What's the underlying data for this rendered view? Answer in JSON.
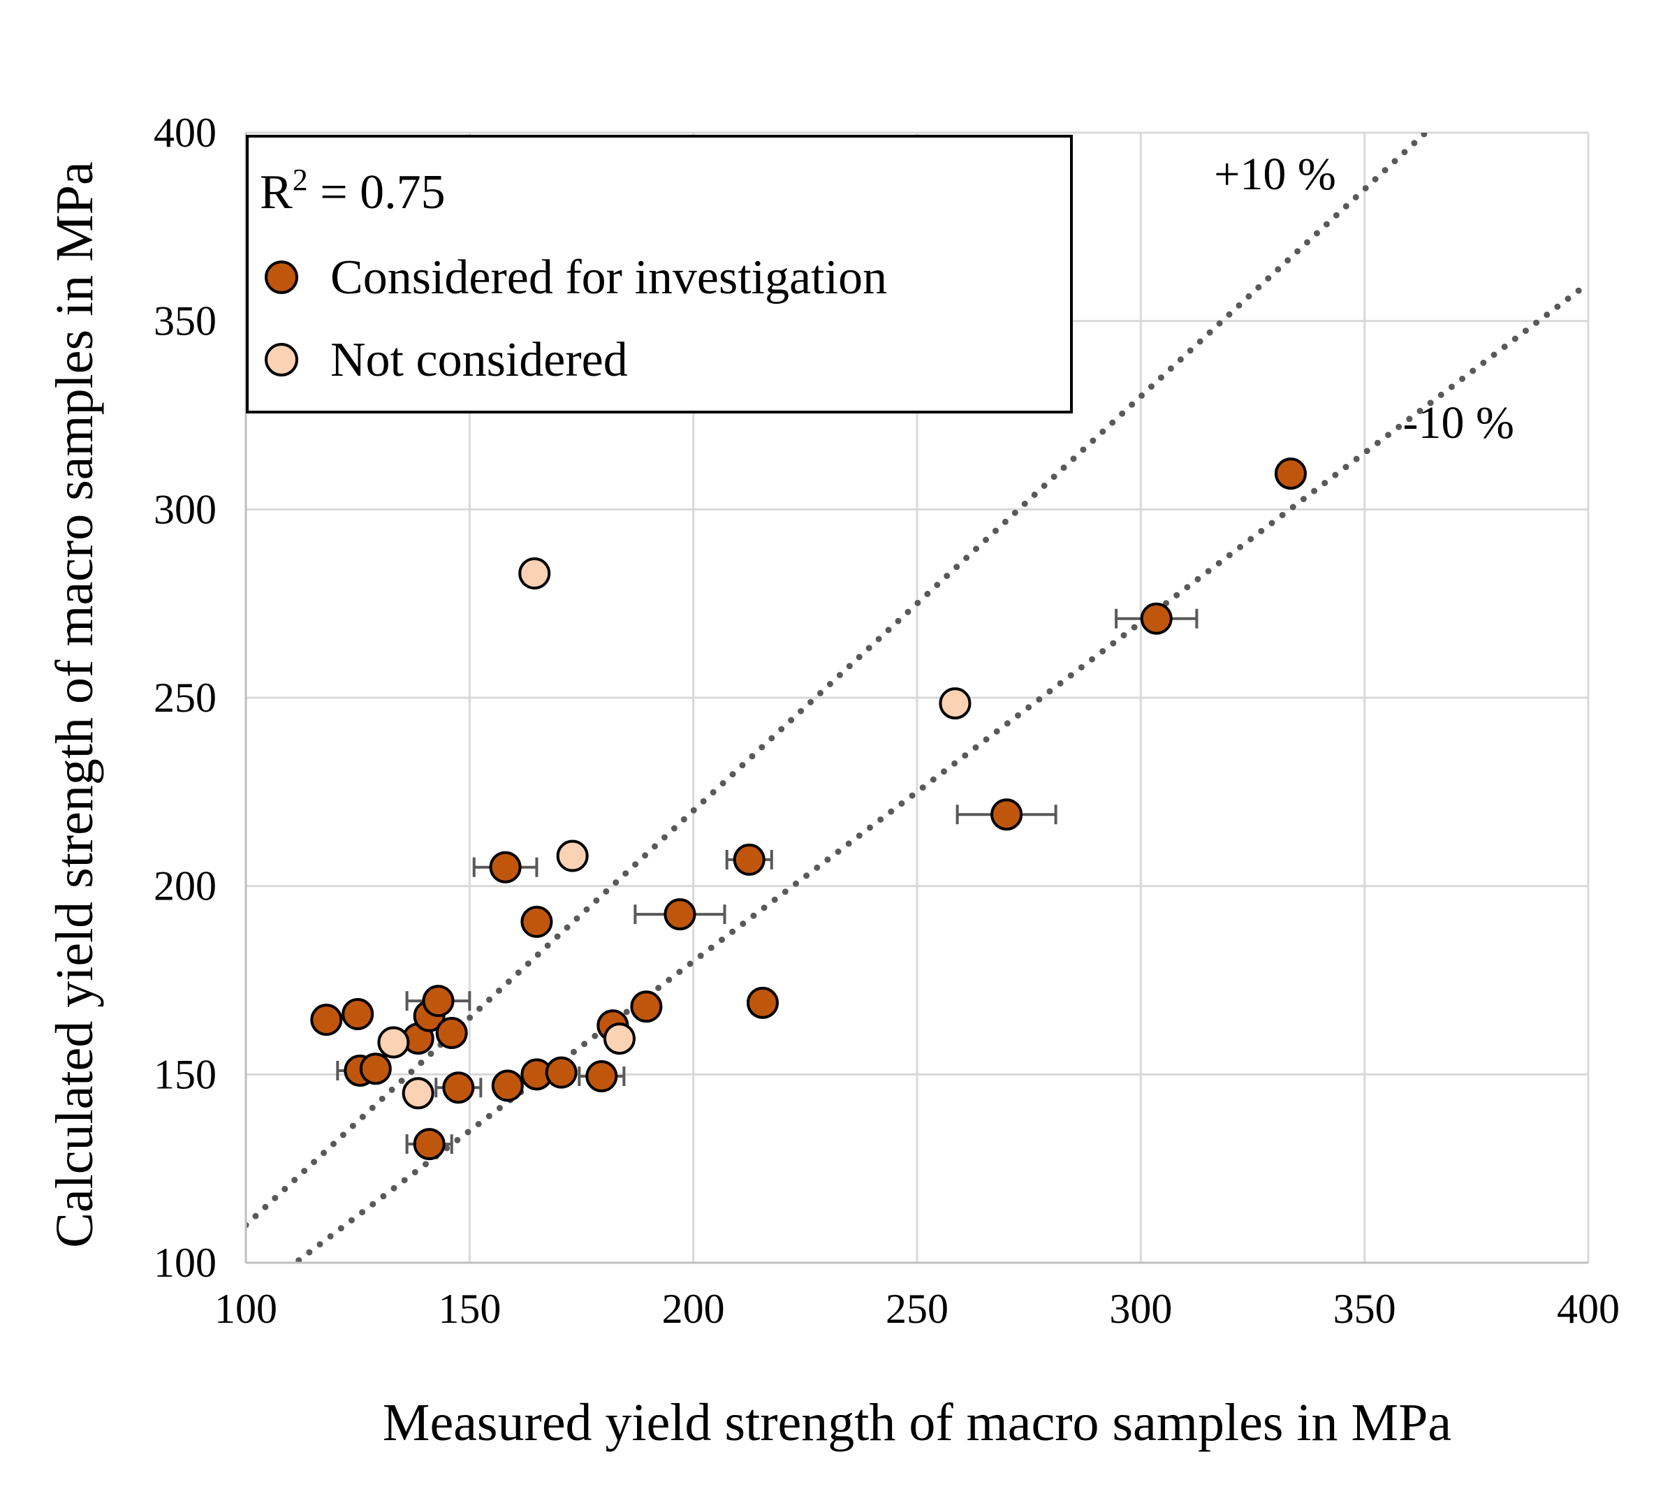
{
  "chart_data": {
    "type": "scatter",
    "xlabel": "Measured yield strength of macro samples in MPa",
    "ylabel": "Calculated yield strength of macro samples in MPa",
    "xlim": [
      100,
      400
    ],
    "ylim": [
      100,
      400
    ],
    "xticks": [
      100,
      150,
      200,
      250,
      300,
      350,
      400
    ],
    "yticks": [
      100,
      150,
      200,
      250,
      300,
      350,
      400
    ],
    "grid": true,
    "legend_position": "top-left",
    "r_squared_text": {
      "prefix": "R",
      "sup": "2",
      "suffix": " = 0.75"
    },
    "reference_lines": [
      {
        "label": "+10 %",
        "slope": 1.1,
        "x": [
          100,
          400
        ],
        "label_pos": [
          330,
          385
        ]
      },
      {
        "label": "-10 %",
        "slope": 0.9,
        "x": [
          100,
          400
        ],
        "label_pos": [
          371,
          319
        ]
      }
    ],
    "colors": {
      "considered": "#c0560c",
      "not_considered": "#fbd2b4",
      "reference_line": "#595959",
      "error_bar": "#595959",
      "grid": "#d9d9d9",
      "axis": "#bfbfbf"
    },
    "series": [
      {
        "name": "Considered for investigation",
        "points": [
          {
            "x": 118.0,
            "y": 164.5
          },
          {
            "x": 125.0,
            "y": 166.0
          },
          {
            "x": 125.5,
            "y": 151.0,
            "xerr": 5
          },
          {
            "x": 129.0,
            "y": 151.5
          },
          {
            "x": 138.5,
            "y": 159.5
          },
          {
            "x": 141.0,
            "y": 165.5
          },
          {
            "x": 143.0,
            "y": 169.5,
            "xerr": 7
          },
          {
            "x": 146.0,
            "y": 161.0
          },
          {
            "x": 141.0,
            "y": 131.5,
            "xerr": 5
          },
          {
            "x": 147.5,
            "y": 146.5,
            "xerr": 5
          },
          {
            "x": 158.0,
            "y": 205.0,
            "xerr": 7
          },
          {
            "x": 158.5,
            "y": 147.0
          },
          {
            "x": 165.0,
            "y": 190.5
          },
          {
            "x": 165.0,
            "y": 150.0
          },
          {
            "x": 170.5,
            "y": 150.5
          },
          {
            "x": 179.5,
            "y": 149.5,
            "xerr": 5
          },
          {
            "x": 182.0,
            "y": 163.0
          },
          {
            "x": 189.5,
            "y": 168.0
          },
          {
            "x": 197.0,
            "y": 192.5,
            "xerr": 10
          },
          {
            "x": 212.5,
            "y": 207.0,
            "xerr": 5
          },
          {
            "x": 215.5,
            "y": 169.0
          },
          {
            "x": 270.0,
            "y": 219.0,
            "xerr": 11
          },
          {
            "x": 303.5,
            "y": 271.0,
            "xerr": 9
          },
          {
            "x": 333.5,
            "y": 309.5
          }
        ]
      },
      {
        "name": "Not considered",
        "points": [
          {
            "x": 133.0,
            "y": 158.5
          },
          {
            "x": 138.5,
            "y": 145.0
          },
          {
            "x": 164.5,
            "y": 283.0
          },
          {
            "x": 173.0,
            "y": 208.0
          },
          {
            "x": 183.5,
            "y": 159.5
          },
          {
            "x": 258.5,
            "y": 248.5
          }
        ]
      }
    ]
  }
}
